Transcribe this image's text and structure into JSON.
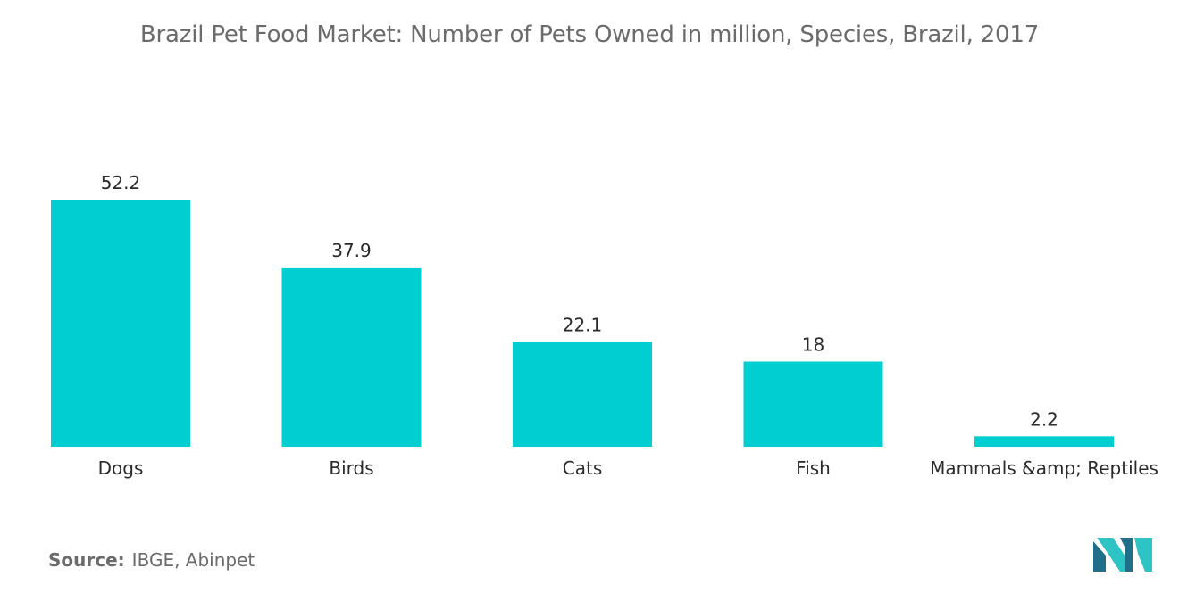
{
  "title": "Brazil Pet Food Market: Number of Pets Owned in million, Species, Brazil, 2017",
  "source": {
    "label": "Source:",
    "text": "IBGE, Abinpet"
  },
  "logo_icon": "mordor-intelligence-logo",
  "colors": {
    "bar": "#00CED1",
    "logo_dark": "#1f6f8b",
    "logo_light": "#2ec4c6"
  },
  "chart_data": {
    "type": "bar",
    "title": "Brazil Pet Food Market: Number of Pets Owned in million, Species, Brazil, 2017",
    "xlabel": "",
    "ylabel": "",
    "categories": [
      "Dogs",
      "Birds",
      "Cats",
      "Fish",
      "Mammals &amp; Reptiles"
    ],
    "values": [
      52.2,
      37.9,
      22.1,
      18,
      2.2
    ],
    "value_labels": [
      "52.2",
      "37.9",
      "22.1",
      "18",
      "2.2"
    ],
    "ylim": [
      0,
      52.2
    ],
    "grid": false,
    "legend": "none"
  }
}
